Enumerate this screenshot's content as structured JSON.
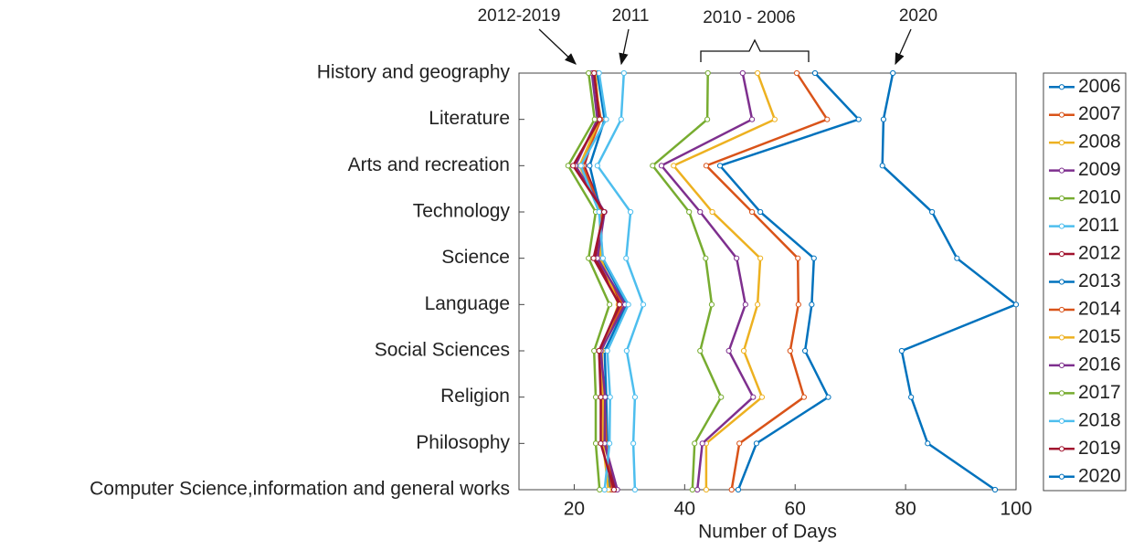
{
  "chart_data": {
    "type": "line",
    "categories": [
      "History and geography",
      "Literature",
      "Arts and recreation",
      "Technology",
      "Science",
      "Language",
      "Social Sciences",
      "Religion",
      "Philosophy",
      "Computer Science,information and general works"
    ],
    "xlabel": "Number of Days",
    "xlim": [
      10,
      100
    ],
    "xticks": [
      20,
      40,
      60,
      80,
      100
    ],
    "annotations": [
      "2012-2019",
      "2011",
      "2010 - 2006",
      "2020"
    ],
    "series": [
      {
        "name": "2006",
        "color": "#0072BD",
        "values": [
          63.6,
          71.5,
          46.4,
          53.7,
          63.4,
          63,
          61.8,
          66,
          53,
          49.7
        ]
      },
      {
        "name": "2007",
        "color": "#D95319",
        "values": [
          60.3,
          65.8,
          43.9,
          52.2,
          60.5,
          60.6,
          59.1,
          61.6,
          49.9,
          48.5
        ]
      },
      {
        "name": "2008",
        "color": "#EDB120",
        "values": [
          53.2,
          56.3,
          38,
          45,
          53.7,
          53.2,
          50.7,
          54,
          43.9,
          43.9
        ]
      },
      {
        "name": "2009",
        "color": "#7E2F8E",
        "values": [
          50.5,
          52.2,
          35.8,
          42.8,
          49.4,
          51,
          48,
          52.4,
          43.2,
          42.3
        ]
      },
      {
        "name": "2010",
        "color": "#77AC30",
        "values": [
          44.2,
          44.1,
          34.2,
          40.8,
          43.8,
          44.9,
          42.8,
          46.6,
          41.8,
          41.4
        ]
      },
      {
        "name": "2011",
        "color": "#4DBEEE",
        "values": [
          29,
          28.5,
          24.2,
          30.2,
          29.4,
          32.5,
          29.5,
          31,
          30.7,
          31
        ]
      },
      {
        "name": "2012",
        "color": "#A2142F",
        "values": [
          23.8,
          24.5,
          21.8,
          25.2,
          23.8,
          28.5,
          24.5,
          25,
          25.5,
          27.5
        ]
      },
      {
        "name": "2013",
        "color": "#0072BD",
        "values": [
          24.2,
          25.5,
          22.8,
          24.8,
          25,
          29.5,
          25.5,
          25.8,
          26,
          26.5
        ]
      },
      {
        "name": "2014",
        "color": "#D95319",
        "values": [
          23.5,
          24.8,
          21.5,
          25,
          24.5,
          28.8,
          24.8,
          25.5,
          25.8,
          26.8
        ]
      },
      {
        "name": "2015",
        "color": "#EDB120",
        "values": [
          23.8,
          24.6,
          21,
          24.6,
          24.8,
          28,
          25,
          25.2,
          25.2,
          26.2
        ]
      },
      {
        "name": "2016",
        "color": "#7E2F8E",
        "values": [
          23.2,
          24.2,
          20.2,
          25.5,
          24.2,
          29.2,
          24.8,
          25.6,
          25.5,
          27.8
        ]
      },
      {
        "name": "2017",
        "color": "#77AC30",
        "values": [
          22.6,
          23.7,
          18.9,
          23.9,
          22.6,
          26.4,
          23.6,
          23.9,
          23.9,
          24.6
        ]
      },
      {
        "name": "2018",
        "color": "#4DBEEE",
        "values": [
          24.5,
          25.8,
          21.2,
          24.5,
          25.2,
          29.8,
          26,
          26.5,
          26.4,
          25.5
        ]
      },
      {
        "name": "2019",
        "color": "#A2142F",
        "values": [
          23.6,
          24.6,
          19.8,
          25.4,
          23.5,
          28.2,
          24.5,
          24.8,
          24.8,
          27.2
        ]
      },
      {
        "name": "2020",
        "color": "#0072BD",
        "values": [
          77.7,
          76,
          75.8,
          84.8,
          89.3,
          100,
          79.3,
          81,
          84,
          96.2
        ]
      }
    ]
  }
}
